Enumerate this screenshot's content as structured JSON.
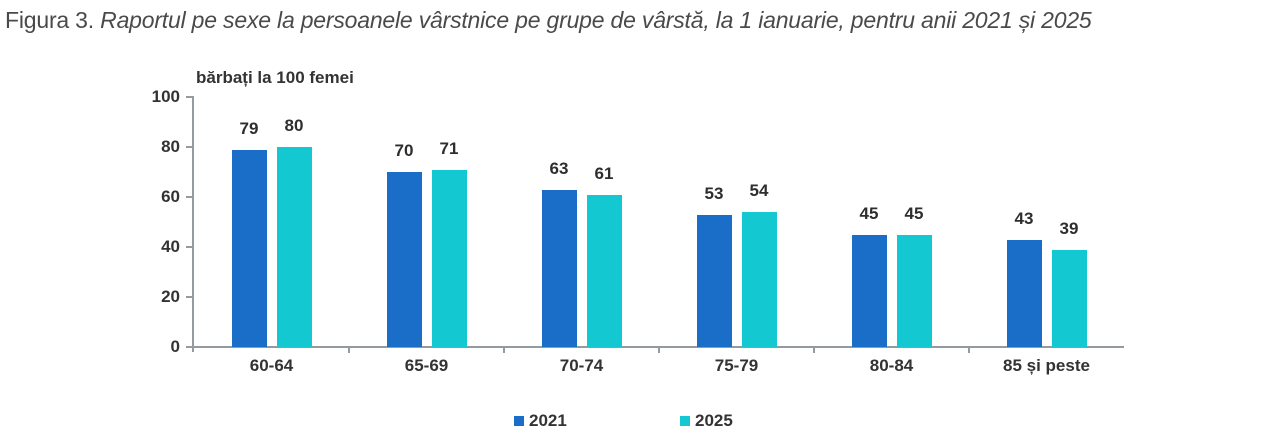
{
  "title": {
    "prefix": "Figura 3. ",
    "main_italic": "Raportul pe sexe la persoanele vârstnice pe grupe de vârstă, la 1 ianuarie, pentru anii 2021 și 2025"
  },
  "chart_data": {
    "type": "bar",
    "title": "Figura 3. Raportul pe sexe la persoanele vârstnice pe grupe de vârstă, la 1 ianuarie, pentru anii 2021 și 2025",
    "axis_unit_label": "bărbați la 100 femei",
    "categories": [
      "60-64",
      "65-69",
      "70-74",
      "75-79",
      "80-84",
      "85 și peste"
    ],
    "series": [
      {
        "name": "2021",
        "color": "#1B6EC7",
        "values": [
          79,
          70,
          63,
          53,
          45,
          43
        ]
      },
      {
        "name": "2025",
        "color": "#14C8D2",
        "values": [
          80,
          71,
          61,
          54,
          45,
          39
        ]
      }
    ],
    "ylim": [
      0,
      100
    ],
    "yticks": [
      0,
      20,
      40,
      60,
      80,
      100
    ],
    "grid": false,
    "legend_position": "bottom",
    "data_labels": true
  },
  "colors": {
    "title_text": "#4a4a4c",
    "chart_text": "#333333",
    "axis_line": "#949a9e",
    "background": "#ffffff"
  }
}
